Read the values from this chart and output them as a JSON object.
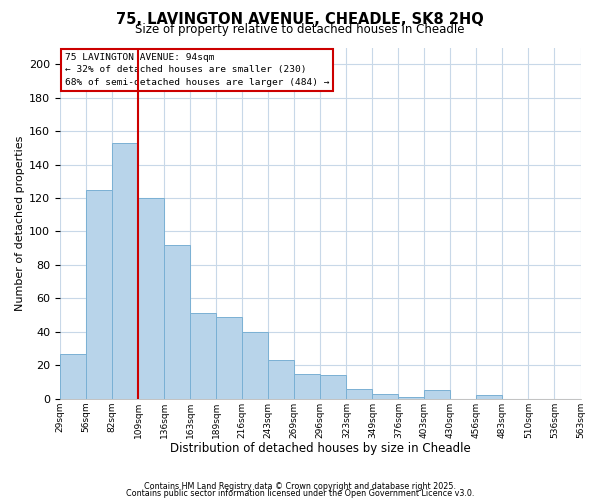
{
  "title": "75, LAVINGTON AVENUE, CHEADLE, SK8 2HQ",
  "subtitle": "Size of property relative to detached houses in Cheadle",
  "xlabel": "Distribution of detached houses by size in Cheadle",
  "ylabel": "Number of detached properties",
  "bar_values": [
    27,
    125,
    153,
    120,
    92,
    51,
    49,
    40,
    23,
    15,
    14,
    6,
    3,
    1,
    5,
    0,
    2,
    0,
    0,
    0
  ],
  "categories": [
    "29sqm",
    "56sqm",
    "82sqm",
    "109sqm",
    "136sqm",
    "163sqm",
    "189sqm",
    "216sqm",
    "243sqm",
    "269sqm",
    "296sqm",
    "323sqm",
    "349sqm",
    "376sqm",
    "403sqm",
    "430sqm",
    "456sqm",
    "483sqm",
    "510sqm",
    "536sqm",
    "563sqm"
  ],
  "bar_color": "#b8d4ea",
  "bar_edge_color": "#7ab0d4",
  "vline_x_index": 2,
  "vline_color": "#cc0000",
  "ylim": [
    0,
    210
  ],
  "yticks": [
    0,
    20,
    40,
    60,
    80,
    100,
    120,
    140,
    160,
    180,
    200
  ],
  "annotation_title": "75 LAVINGTON AVENUE: 94sqm",
  "annotation_line1": "← 32% of detached houses are smaller (230)",
  "annotation_line2": "68% of semi-detached houses are larger (484) →",
  "annotation_box_color": "#cc0000",
  "footer_line1": "Contains HM Land Registry data © Crown copyright and database right 2025.",
  "footer_line2": "Contains public sector information licensed under the Open Government Licence v3.0.",
  "background_color": "#ffffff",
  "grid_color": "#c8d8e8"
}
